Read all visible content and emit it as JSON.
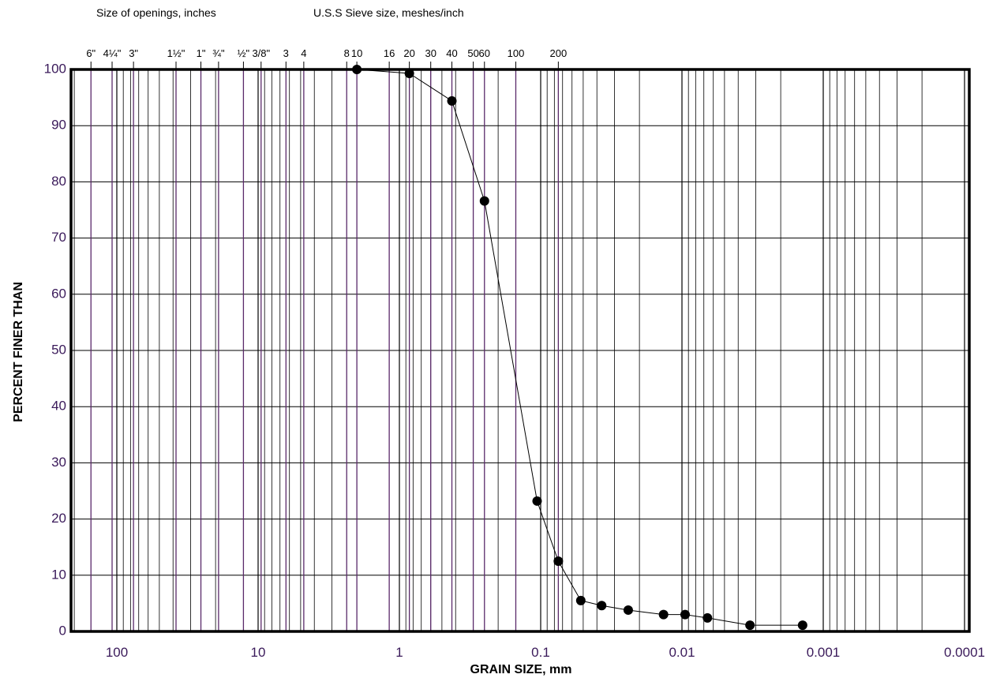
{
  "header": {
    "openings_label": "Size of openings, inches",
    "sieve_label": "U.S.S Sieve size, meshes/inch"
  },
  "chart_data": {
    "type": "scatter",
    "title": "",
    "xlabel": "GRAIN SIZE, mm",
    "ylabel": "PERCENT FINER THAN",
    "x_scale": "log",
    "x_reversed": true,
    "xlim": [
      200,
      0.0001
    ],
    "ylim": [
      0,
      100
    ],
    "grid": true,
    "x_ticks": [
      {
        "value": 100,
        "label": "100"
      },
      {
        "value": 10,
        "label": "10"
      },
      {
        "value": 1,
        "label": "1"
      },
      {
        "value": 0.1,
        "label": "0.1"
      },
      {
        "value": 0.01,
        "label": "0.01"
      },
      {
        "value": 0.001,
        "label": "0.001"
      },
      {
        "value": 0.0001,
        "label": "0.0001"
      }
    ],
    "y_ticks": [
      0,
      10,
      20,
      30,
      40,
      50,
      60,
      70,
      80,
      90,
      100
    ],
    "sieve_ticks": [
      {
        "value": 152.4,
        "label": "6\""
      },
      {
        "value": 108,
        "label": "4¼\""
      },
      {
        "value": 76.2,
        "label": "3\""
      },
      {
        "value": 38.1,
        "label": "1½\""
      },
      {
        "value": 25.4,
        "label": "1\""
      },
      {
        "value": 19.05,
        "label": "¾\""
      },
      {
        "value": 12.7,
        "label": "½\""
      },
      {
        "value": 9.525,
        "label": "3/8\""
      },
      {
        "value": 6.35,
        "label": "3"
      },
      {
        "value": 4.75,
        "label": "4"
      },
      {
        "value": 2.36,
        "label": "8"
      },
      {
        "value": 2.0,
        "label": "10"
      },
      {
        "value": 1.18,
        "label": "16"
      },
      {
        "value": 0.85,
        "label": "20"
      },
      {
        "value": 0.6,
        "label": "30"
      },
      {
        "value": 0.425,
        "label": "40"
      },
      {
        "value": 0.3,
        "label": "50"
      },
      {
        "value": 0.25,
        "label": "60"
      },
      {
        "value": 0.15,
        "label": "100"
      },
      {
        "value": 0.075,
        "label": "200"
      }
    ],
    "series": [
      {
        "color": "#000000",
        "points": [
          {
            "x": 2.0,
            "y": 100
          },
          {
            "x": 0.85,
            "y": 99.3
          },
          {
            "x": 0.425,
            "y": 94.4
          },
          {
            "x": 0.25,
            "y": 76.6
          },
          {
            "x": 0.106,
            "y": 23.2
          },
          {
            "x": 0.075,
            "y": 12.5
          },
          {
            "x": 0.052,
            "y": 5.5
          },
          {
            "x": 0.037,
            "y": 4.6
          },
          {
            "x": 0.024,
            "y": 3.8
          },
          {
            "x": 0.0135,
            "y": 3.0
          },
          {
            "x": 0.0095,
            "y": 3.0
          },
          {
            "x": 0.0066,
            "y": 2.4
          },
          {
            "x": 0.0033,
            "y": 1.1
          },
          {
            "x": 0.0014,
            "y": 1.1
          }
        ]
      }
    ]
  }
}
